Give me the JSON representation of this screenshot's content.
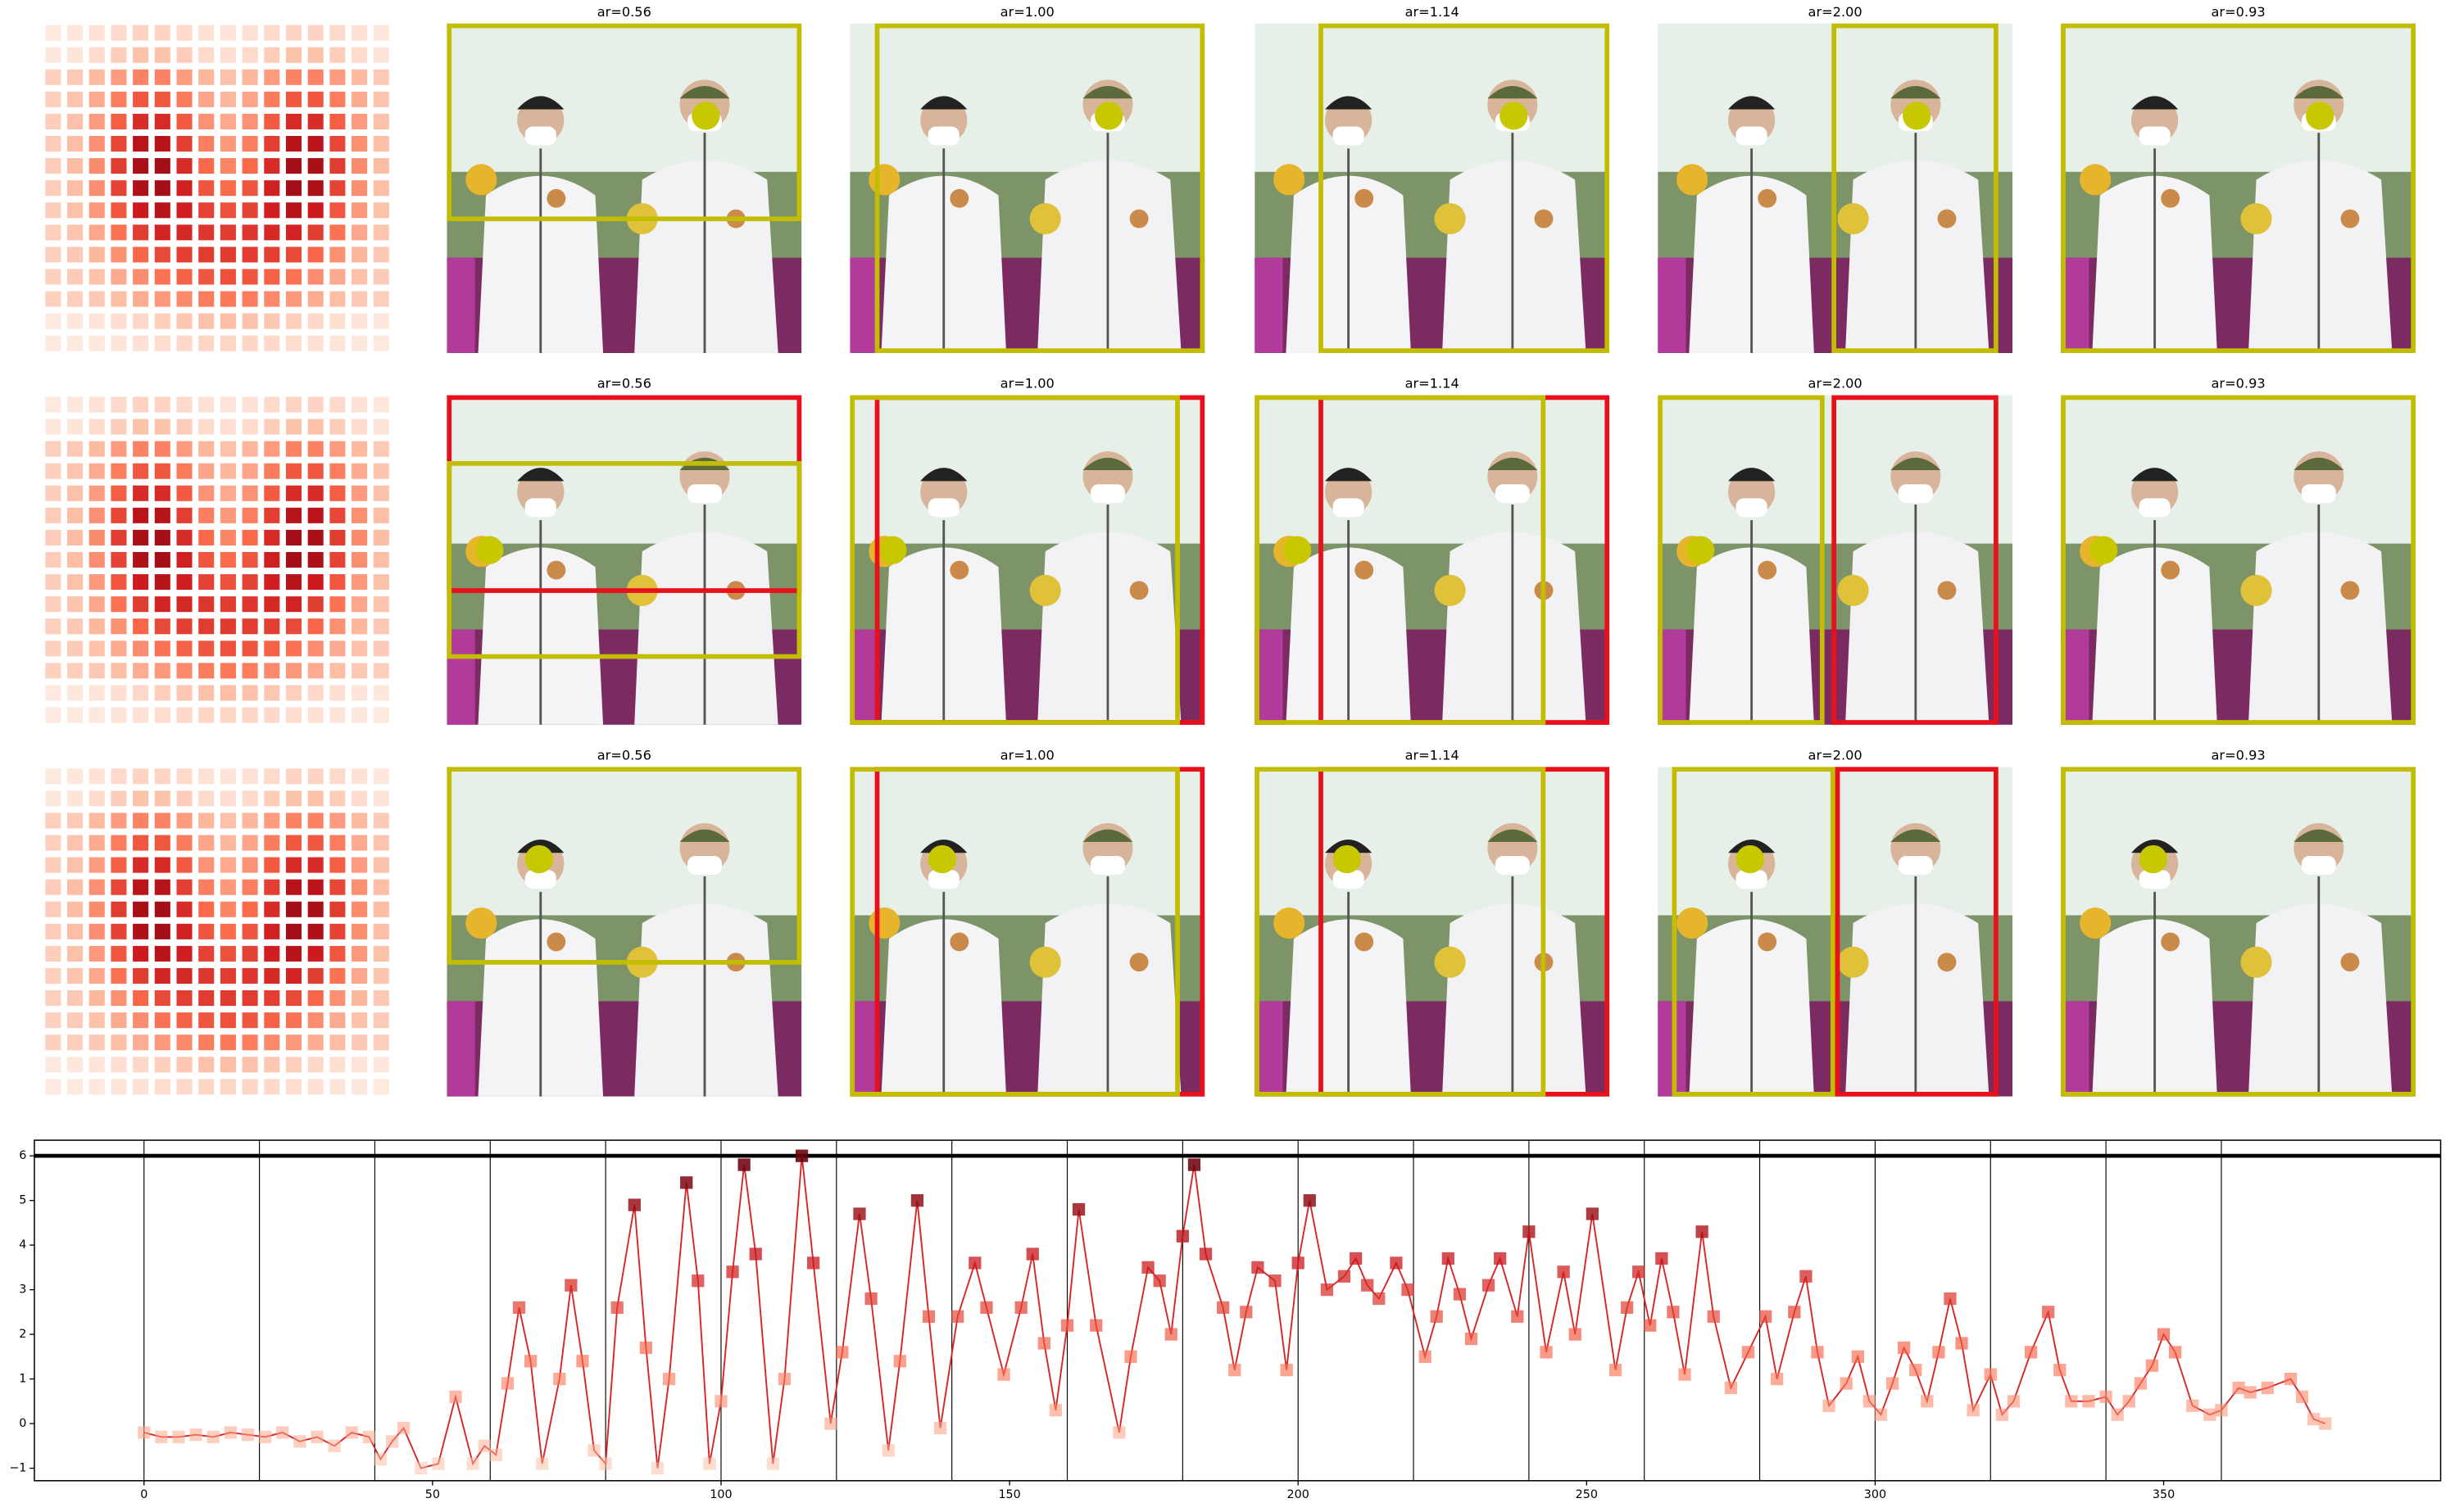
{
  "panel_titles": [
    [
      "ar=0.56",
      "ar=1.00",
      "ar=1.14",
      "ar=2.00",
      "ar=0.93"
    ],
    [
      "ar=0.56",
      "ar=1.00",
      "ar=1.14",
      "ar=2.00",
      "ar=0.93"
    ],
    [
      "ar=0.56",
      "ar=1.00",
      "ar=1.14",
      "ar=2.00",
      "ar=0.93"
    ]
  ],
  "chart_data": {
    "type": "line",
    "color": "#d62728",
    "marker": "square",
    "colormap": "Reds",
    "grid": false,
    "x": [
      0,
      3,
      6,
      9,
      12,
      15,
      18,
      21,
      24,
      27,
      30,
      33,
      36,
      39,
      41,
      43,
      45,
      48,
      51,
      54,
      57,
      59,
      61,
      63,
      65,
      67,
      69,
      72,
      74,
      76,
      78,
      80,
      82,
      85,
      87,
      89,
      91,
      94,
      96,
      98,
      100,
      102,
      104,
      106,
      109,
      111,
      114,
      116,
      119,
      121,
      124,
      126,
      129,
      131,
      134,
      136,
      138,
      141,
      144,
      146,
      149,
      152,
      154,
      156,
      158,
      160,
      162,
      165,
      169,
      171,
      174,
      176,
      178,
      180,
      182,
      184,
      187,
      189,
      191,
      193,
      196,
      198,
      200,
      202,
      205,
      208,
      210,
      212,
      214,
      217,
      219,
      222,
      224,
      226,
      228,
      230,
      233,
      235,
      238,
      240,
      243,
      246,
      248,
      251,
      255,
      257,
      259,
      261,
      263,
      265,
      267,
      270,
      272,
      275,
      278,
      281,
      283,
      286,
      288,
      290,
      292,
      295,
      297,
      299,
      301,
      303,
      305,
      307,
      309,
      311,
      313,
      315,
      317,
      320,
      322,
      324,
      327,
      330,
      332,
      334,
      337,
      340,
      342,
      344,
      346,
      348,
      350,
      352,
      355,
      358,
      360,
      363,
      365,
      368,
      372,
      374,
      376,
      378
    ],
    "values": [
      -0.2,
      -0.3,
      -0.3,
      -0.25,
      -0.3,
      -0.2,
      -0.25,
      -0.3,
      -0.2,
      -0.4,
      -0.3,
      -0.5,
      -0.2,
      -0.3,
      -0.8,
      -0.4,
      -0.1,
      -1.0,
      -0.9,
      0.6,
      -0.9,
      -0.5,
      -0.7,
      0.9,
      2.6,
      1.4,
      -0.9,
      1.0,
      3.1,
      1.4,
      -0.6,
      -0.9,
      2.6,
      4.9,
      1.7,
      -1.0,
      1.0,
      5.4,
      3.2,
      -0.9,
      0.5,
      3.4,
      5.8,
      3.8,
      -0.9,
      1.0,
      6.0,
      3.6,
      0.0,
      1.6,
      4.7,
      2.8,
      -0.6,
      1.4,
      5.0,
      2.4,
      -0.1,
      2.4,
      3.6,
      2.6,
      1.1,
      2.6,
      3.8,
      1.8,
      0.3,
      2.2,
      4.8,
      2.2,
      -0.2,
      1.5,
      3.5,
      3.2,
      2.0,
      4.2,
      5.8,
      3.8,
      2.6,
      1.2,
      2.5,
      3.5,
      3.2,
      1.2,
      3.6,
      5.0,
      3.0,
      3.3,
      3.7,
      3.1,
      2.8,
      3.6,
      3.0,
      1.5,
      2.4,
      3.7,
      2.9,
      1.9,
      3.1,
      3.7,
      2.4,
      4.3,
      1.6,
      3.4,
      2.0,
      4.7,
      1.2,
      2.6,
      3.4,
      2.2,
      3.7,
      2.5,
      1.1,
      4.3,
      2.4,
      0.8,
      1.6,
      2.4,
      1.0,
      2.5,
      3.3,
      1.6,
      0.4,
      0.9,
      1.5,
      0.5,
      0.2,
      0.9,
      1.7,
      1.2,
      0.5,
      1.6,
      2.8,
      1.8,
      0.3,
      1.1,
      0.2,
      0.5,
      1.6,
      2.5,
      1.2,
      0.5,
      0.5,
      0.6,
      0.2,
      0.5,
      0.9,
      1.3,
      2.0,
      1.6,
      0.4,
      0.2,
      0.3,
      0.8,
      0.7,
      0.8,
      1.0,
      0.6,
      0.1,
      0.0
    ],
    "xlim": [
      -19,
      398
    ],
    "ylim": [
      -1.28,
      6.35
    ],
    "xticks": [
      0,
      50,
      100,
      150,
      200,
      250,
      300,
      350
    ],
    "yticks": [
      {
        "value": -1,
        "label": "−1"
      },
      0,
      1,
      2,
      3,
      4,
      5,
      6
    ],
    "vlines": [
      0,
      20,
      40,
      60,
      80,
      100,
      120,
      140,
      160,
      180,
      200,
      220,
      240,
      260,
      280,
      300,
      320,
      340,
      360
    ],
    "hline": 6
  }
}
